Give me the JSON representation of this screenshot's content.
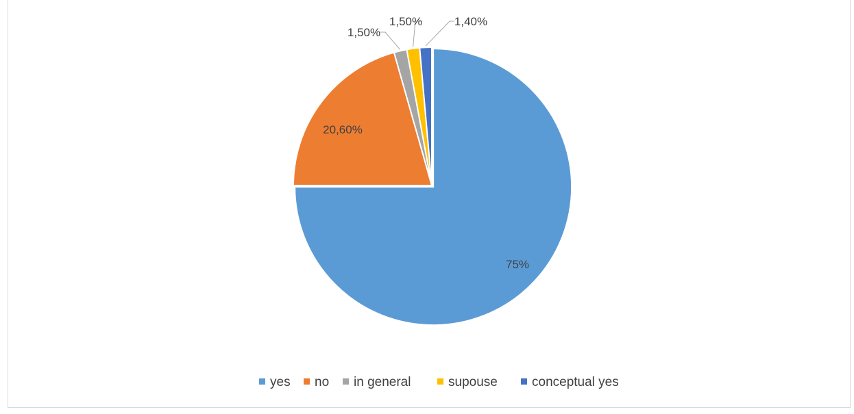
{
  "chart_data": {
    "type": "pie",
    "categories": [
      "yes",
      "no",
      "in general",
      "supouse",
      "conceptual yes"
    ],
    "values": [
      75,
      20.6,
      1.5,
      1.5,
      1.4
    ],
    "data_labels": [
      "75%",
      "20,60%",
      "1,50%",
      "1,50%",
      "1,40%"
    ],
    "colors": [
      "#5b9bd5",
      "#ed7d31",
      "#a5a5a5",
      "#ffc000",
      "#4472c4"
    ],
    "legend_position": "bottom",
    "explode_slice": "yes"
  }
}
